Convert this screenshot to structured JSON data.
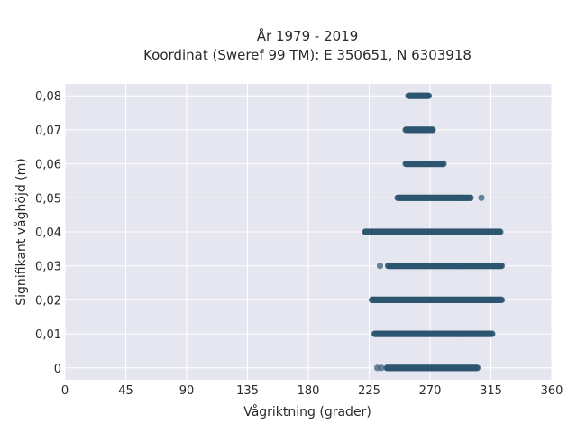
{
  "chart_data": {
    "type": "scatter",
    "title_line1": "År 1979 - 2019",
    "title_line2": "Koordinat (Sweref 99 TM): E 350651, N 6303918",
    "xlabel": "Vågriktning (grader)",
    "ylabel": "Signifikant våghöjd (m)",
    "xlim": [
      0,
      360
    ],
    "ylim": [
      -0.0035,
      0.0835
    ],
    "x_ticks": [
      "0",
      "45",
      "90",
      "135",
      "180",
      "225",
      "270",
      "315",
      "360"
    ],
    "x_tick_values": [
      0,
      45,
      90,
      135,
      180,
      225,
      270,
      315,
      360
    ],
    "y_ticks": [
      "0",
      "0,01",
      "0,02",
      "0,03",
      "0,04",
      "0,05",
      "0,06",
      "0,07",
      "0,08"
    ],
    "y_tick_values": [
      0,
      0.01,
      0.02,
      0.03,
      0.04,
      0.05,
      0.06,
      0.07,
      0.08
    ],
    "grid": true,
    "background_color": "#e5e6f0",
    "point_color": "#2e5570",
    "series": [
      {
        "bands": [
          {
            "y": 0.0,
            "x_min": 238,
            "x_max": 305,
            "outliers": [
              231,
              234
            ]
          },
          {
            "y": 0.01,
            "x_min": 229,
            "x_max": 316,
            "outliers": []
          },
          {
            "y": 0.02,
            "x_min": 227,
            "x_max": 323,
            "outliers": []
          },
          {
            "y": 0.03,
            "x_min": 239,
            "x_max": 323,
            "outliers": [
              233
            ]
          },
          {
            "y": 0.04,
            "x_min": 222,
            "x_max": 322,
            "outliers": []
          },
          {
            "y": 0.05,
            "x_min": 246,
            "x_max": 300,
            "outliers": [
              308
            ]
          },
          {
            "y": 0.06,
            "x_min": 252,
            "x_max": 280,
            "outliers": []
          },
          {
            "y": 0.07,
            "x_min": 252,
            "x_max": 272,
            "outliers": []
          },
          {
            "y": 0.08,
            "x_min": 254,
            "x_max": 269,
            "outliers": []
          }
        ]
      }
    ]
  }
}
